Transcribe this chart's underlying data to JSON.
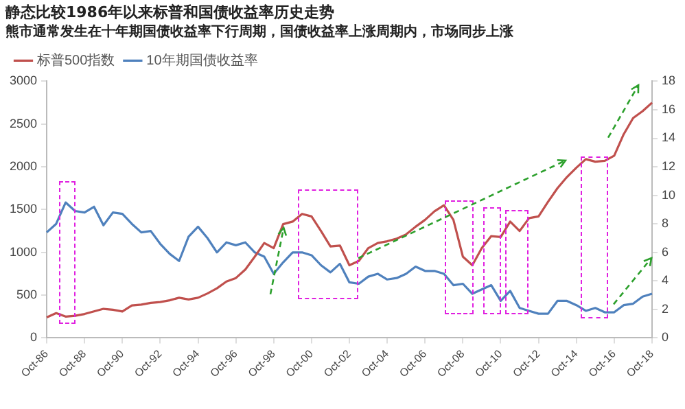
{
  "chart_data": {
    "type": "line",
    "title": "静态比较1986年以来标普和国债收益率历史走势",
    "subtitle": "熊市通常发生在十年期国债收益率下行周期，国债收益率上涨周期内，市场同步上涨",
    "categories": [
      "Oct-86",
      null,
      null,
      null,
      "Oct-88",
      null,
      null,
      null,
      "Oct-90",
      null,
      null,
      null,
      "Oct-92",
      null,
      null,
      null,
      "Oct-94",
      null,
      null,
      null,
      "Oct-96",
      null,
      null,
      null,
      "Oct-98",
      null,
      null,
      null,
      "Oct-00",
      null,
      null,
      null,
      "Oct-02",
      null,
      null,
      null,
      "Oct-04",
      null,
      null,
      null,
      "Oct-06",
      null,
      null,
      null,
      "Oct-08",
      null,
      null,
      null,
      "Oct-10",
      null,
      null,
      null,
      "Oct-12",
      null,
      null,
      null,
      "Oct-14",
      null,
      null,
      null,
      "Oct-16",
      null,
      null,
      null,
      "Oct-18"
    ],
    "ylim": [
      0,
      3000
    ],
    "yticks": [
      0,
      500,
      1000,
      1500,
      2000,
      2500,
      3000
    ],
    "y2lim": [
      0,
      18
    ],
    "y2ticks": [
      0,
      2,
      4,
      6,
      8,
      10,
      12,
      14,
      16,
      18
    ],
    "legend": "top left",
    "line_style": "solid",
    "series": [
      {
        "name": "标普500指数",
        "color": "#c0504d",
        "values": [
          240,
          290,
          250,
          260,
          280,
          310,
          340,
          330,
          310,
          380,
          390,
          410,
          420,
          440,
          470,
          450,
          470,
          520,
          580,
          660,
          700,
          800,
          950,
          1110,
          1050,
          1330,
          1360,
          1450,
          1420,
          1250,
          1070,
          1080,
          850,
          900,
          1050,
          1110,
          1130,
          1160,
          1210,
          1300,
          1380,
          1480,
          1550,
          1380,
          950,
          850,
          1050,
          1190,
          1180,
          1360,
          1250,
          1400,
          1420,
          1590,
          1750,
          1880,
          1990,
          2090,
          2060,
          2070,
          2130,
          2380,
          2570,
          2650,
          2750
        ]
      },
      {
        "name": "10年期国债收益率",
        "color": "#4f81bd",
        "axis": "y2",
        "values": [
          7.4,
          8.0,
          9.5,
          8.9,
          8.8,
          9.2,
          7.9,
          8.8,
          8.7,
          8.0,
          7.4,
          7.5,
          6.6,
          5.9,
          5.4,
          7.1,
          7.8,
          7.0,
          6.0,
          6.7,
          6.5,
          6.7,
          6.0,
          5.7,
          4.5,
          5.3,
          6.0,
          6.0,
          5.8,
          5.1,
          4.6,
          5.2,
          3.9,
          3.8,
          4.3,
          4.5,
          4.1,
          4.2,
          4.5,
          5.0,
          4.7,
          4.7,
          4.5,
          3.7,
          3.8,
          3.1,
          3.4,
          3.7,
          2.6,
          3.3,
          2.1,
          1.9,
          1.7,
          1.7,
          2.6,
          2.6,
          2.3,
          1.9,
          2.1,
          1.8,
          1.8,
          2.3,
          2.4,
          2.9,
          3.1
        ]
      }
    ]
  }
}
